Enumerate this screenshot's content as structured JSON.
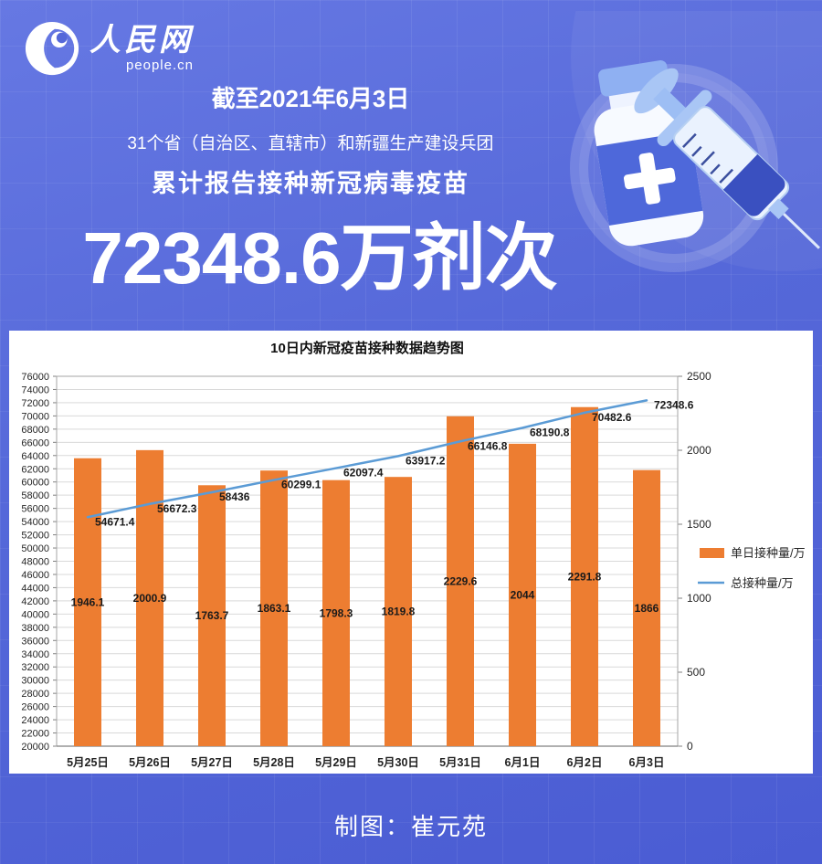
{
  "brand": {
    "logo_main": "人民网",
    "logo_sub": "people.cn",
    "accent_blue": "#5568d9",
    "panel_bg": "#ffffff"
  },
  "header": {
    "date_line": "截至2021年6月3日",
    "scope_line": "31个省（自治区、直辖市）和新疆生产建设兵团",
    "report_line": "累计报告接种新冠病毒疫苗",
    "big_number": "72348.6万剂次"
  },
  "footer": {
    "credit": "制图：崔元苑"
  },
  "chart_data": {
    "type": "bar",
    "subtype": "combo-bar-line",
    "title": "10日内新冠疫苗接种数据趋势图",
    "categories": [
      "5月25日",
      "5月26日",
      "5月27日",
      "5月28日",
      "5月29日",
      "5月30日",
      "5月31日",
      "6月1日",
      "6月2日",
      "6月3日"
    ],
    "series": [
      {
        "name": "单日接种量/万",
        "type": "bar",
        "axis": "right",
        "color": "#ED7D31",
        "values": [
          1946.1,
          2000.9,
          1763.7,
          1863.1,
          1798.3,
          1819.8,
          2229.6,
          2044,
          2291.8,
          1866
        ]
      },
      {
        "name": "总接种量/万",
        "type": "line",
        "axis": "left",
        "color": "#5B9BD5",
        "values": [
          54671.4,
          56672.3,
          58436,
          60299.1,
          62097.4,
          63917.2,
          66146.8,
          68190.8,
          70482.6,
          72348.6
        ]
      }
    ],
    "left_axis": {
      "min": 20000,
      "max": 76000,
      "step": 2000
    },
    "right_axis": {
      "min": 0,
      "max": 2500,
      "step": 500
    },
    "grid": true,
    "legend_position": "right",
    "grid_color": "#d9d9d9",
    "axis_color": "#808080",
    "label_color": "#1a1a1a"
  }
}
